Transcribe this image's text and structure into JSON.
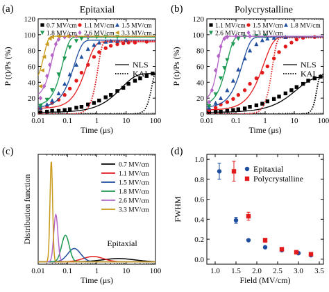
{
  "chart_data": [
    {
      "panel_label": "(a)",
      "type": "scatter",
      "title": "Epitaxial",
      "xlabel": "Time (μs)",
      "ylabel": "P (t)/Ps (%)",
      "xscale": "log",
      "xlim": [
        0.01,
        100
      ],
      "ylim": [
        0,
        120
      ],
      "xticks": [
        0.01,
        0.1,
        1,
        10,
        100
      ],
      "xticklabels": [
        "0.01",
        "0.1",
        "1",
        "10",
        "100"
      ],
      "yticks": [
        0,
        20,
        40,
        60,
        80,
        100,
        120
      ],
      "yticklabels": [
        "0",
        "20",
        "40",
        "60",
        "80",
        "100",
        "120"
      ],
      "legend_position": "top-left",
      "series": [
        {
          "name": "0.7 MV/cm",
          "color": "#000000",
          "marker": "square",
          "t0": 7,
          "n": 0.9,
          "x": [
            0.012,
            0.02,
            0.03,
            0.05,
            0.08,
            0.12,
            0.2,
            0.3,
            0.5,
            0.8,
            1.2,
            2,
            3,
            5,
            8,
            12,
            20,
            30,
            50,
            80
          ],
          "y": [
            2,
            3,
            4,
            4,
            5,
            6,
            8,
            9,
            12,
            14,
            17,
            21,
            24,
            29,
            33,
            38,
            42,
            45,
            48,
            51
          ]
        },
        {
          "name": "1.1 MV/cm",
          "color": "#e31a1c",
          "marker": "circle",
          "t0": 0.45,
          "n": 1.5,
          "x": [
            0.012,
            0.02,
            0.03,
            0.05,
            0.08,
            0.12,
            0.2,
            0.3,
            0.5,
            0.8,
            1.2,
            2,
            3,
            5,
            8,
            12,
            20,
            50
          ],
          "y": [
            7,
            10,
            14,
            18,
            24,
            32,
            42,
            52,
            62,
            72,
            78,
            83,
            86,
            88,
            89,
            90,
            90,
            91
          ]
        },
        {
          "name": "1.5 MV/cm",
          "color": "#1f4e9e",
          "marker": "triangle",
          "t0": 0.17,
          "n": 1.6,
          "x": [
            0.012,
            0.02,
            0.03,
            0.05,
            0.08,
            0.12,
            0.2,
            0.3,
            0.5,
            0.8,
            1.2,
            2,
            3,
            5,
            10
          ],
          "y": [
            8,
            12,
            17,
            26,
            38,
            50,
            62,
            72,
            82,
            87,
            90,
            91,
            92,
            92,
            93
          ]
        },
        {
          "name": "1.8 MV/cm",
          "color": "#1a9850",
          "marker": "triangle-down",
          "t0": 0.07,
          "n": 2.0,
          "x": [
            0.012,
            0.02,
            0.03,
            0.05,
            0.08,
            0.12,
            0.2,
            0.3,
            0.5,
            1,
            2,
            5
          ],
          "y": [
            10,
            18,
            30,
            50,
            70,
            84,
            92,
            95,
            96,
            97,
            97,
            97
          ]
        },
        {
          "name": "2.6 MV/cm",
          "color": "#b565c8",
          "marker": "diamond",
          "t0": 0.03,
          "n": 2.5,
          "x": [
            0.012,
            0.016,
            0.02,
            0.025,
            0.03,
            0.04,
            0.05,
            0.08,
            0.12,
            0.2,
            0.5
          ],
          "y": [
            20,
            35,
            48,
            62,
            74,
            88,
            94,
            97,
            98,
            98,
            98
          ]
        },
        {
          "name": "3.3 MV/cm",
          "color": "#c99a1a",
          "marker": "triangle-left",
          "t0": 0.016,
          "n": 3.0,
          "x": [
            0.012,
            0.014,
            0.016,
            0.02,
            0.025,
            0.03,
            0.05,
            0.1
          ],
          "y": [
            35,
            55,
            72,
            88,
            95,
            97,
            98,
            98
          ]
        }
      ],
      "model_legend": [
        "NLS",
        "KAI"
      ],
      "kai_curves": [
        {
          "color": "#000000",
          "t0": 75,
          "n": 4,
          "max": 55
        },
        {
          "color": "#e31a1c",
          "t0": 1.1,
          "n": 3,
          "max": 92
        }
      ]
    },
    {
      "panel_label": "(b)",
      "type": "scatter",
      "title": "Polycrystalline",
      "xlabel": "Time (μs)",
      "ylabel": "P (t)/Ps (%)",
      "xscale": "log",
      "xlim": [
        0.01,
        100
      ],
      "ylim": [
        0,
        120
      ],
      "xticks": [
        0.01,
        0.1,
        1,
        10,
        100
      ],
      "xticklabels": [
        "0.01",
        "0.1",
        "1",
        "10",
        "100"
      ],
      "yticks": [
        0,
        20,
        40,
        60,
        80,
        100,
        120
      ],
      "yticklabels": [
        "0",
        "20",
        "40",
        "60",
        "80",
        "100",
        "120"
      ],
      "legend_position": "top-left",
      "series": [
        {
          "name": "1.1 MV/cm",
          "color": "#000000",
          "marker": "square",
          "t0": 12,
          "n": 0.8,
          "x": [
            0.012,
            0.02,
            0.03,
            0.05,
            0.08,
            0.12,
            0.2,
            0.3,
            0.5,
            0.8,
            1.2,
            2,
            3,
            5,
            8,
            12,
            20,
            30,
            50,
            80
          ],
          "y": [
            2,
            3,
            3,
            4,
            5,
            6,
            7,
            9,
            11,
            13,
            16,
            19,
            22,
            26,
            30,
            34,
            38,
            42,
            45,
            47
          ]
        },
        {
          "name": "1.5 MV/cm",
          "color": "#e31a1c",
          "marker": "circle",
          "t0": 0.9,
          "n": 1.3,
          "x": [
            0.012,
            0.02,
            0.03,
            0.05,
            0.08,
            0.12,
            0.2,
            0.3,
            0.5,
            0.8,
            1.2,
            2,
            3,
            5,
            8,
            12,
            20,
            50
          ],
          "y": [
            5,
            8,
            12,
            15,
            19,
            24,
            30,
            38,
            45,
            52,
            60,
            70,
            78,
            85,
            90,
            94,
            96,
            97
          ]
        },
        {
          "name": "1.8 MV/cm",
          "color": "#1f4e9e",
          "marker": "triangle",
          "t0": 0.17,
          "n": 1.6,
          "x": [
            0.012,
            0.02,
            0.03,
            0.05,
            0.08,
            0.12,
            0.2,
            0.3,
            0.5,
            0.8,
            1.2,
            2,
            5
          ],
          "y": [
            8,
            14,
            20,
            30,
            42,
            56,
            70,
            80,
            88,
            93,
            95,
            96,
            97
          ]
        },
        {
          "name": "2.6 MV/cm",
          "color": "#1a9850",
          "marker": "triangle-down",
          "t0": 0.05,
          "n": 2.0,
          "x": [
            0.012,
            0.02,
            0.03,
            0.04,
            0.05,
            0.08,
            0.12,
            0.2,
            0.5,
            1
          ],
          "y": [
            10,
            25,
            45,
            58,
            68,
            88,
            95,
            97,
            98,
            98
          ]
        },
        {
          "name": "3.3 MV/cm",
          "color": "#b565c8",
          "marker": "diamond",
          "t0": 0.025,
          "n": 3.0,
          "x": [
            0.012,
            0.015,
            0.02,
            0.025,
            0.03,
            0.04,
            0.05,
            0.1,
            0.3
          ],
          "y": [
            15,
            30,
            55,
            73,
            85,
            95,
            97,
            98,
            98
          ]
        }
      ],
      "model_legend": [
        "NLS",
        "KAI"
      ],
      "kai_curves": [
        {
          "color": "#000000",
          "t0": 60,
          "n": 5,
          "max": 50
        },
        {
          "color": "#e31a1c",
          "t0": 1.8,
          "n": 3,
          "max": 96
        }
      ]
    },
    {
      "panel_label": "(c)",
      "type": "line",
      "title": "",
      "xlabel": "Time (μs)",
      "ylabel": "Distribution function",
      "xscale": "log",
      "xlim": [
        0.01,
        100
      ],
      "xticks": [
        0.01,
        0.1,
        1,
        10,
        100
      ],
      "xticklabels": [
        "0.01",
        "0.1",
        "1",
        "10",
        "100"
      ],
      "annotation": "Epitaxial",
      "legend_position": "top-right",
      "series": [
        {
          "name": "0.7 MV/cm",
          "color": "#000000",
          "center": 5.5,
          "width": 0.55,
          "height": 0.11
        },
        {
          "name": "1.1 MV/cm",
          "color": "#e31a1c",
          "center": 0.75,
          "width": 0.35,
          "height": 0.18
        },
        {
          "name": "1.5 MV/cm",
          "color": "#1f4e9e",
          "center": 0.17,
          "width": 0.22,
          "height": 0.45
        },
        {
          "name": "1.8 MV/cm",
          "color": "#1a9850",
          "center": 0.085,
          "width": 0.13,
          "height": 0.9
        },
        {
          "name": "2.6 MV/cm",
          "color": "#b565c8",
          "center": 0.04,
          "width": 0.07,
          "height": 1.6
        },
        {
          "name": "3.3 MV/cm",
          "color": "#c99a1a",
          "center": 0.028,
          "width": 0.045,
          "height": 3.4
        }
      ]
    },
    {
      "panel_label": "(d)",
      "type": "scatter",
      "title": "",
      "xlabel": "Field (MV/cm)",
      "ylabel": "FWHM",
      "xlim": [
        0.8,
        3.6
      ],
      "ylim": [
        -0.05,
        1.05
      ],
      "xticks": [
        1.0,
        1.5,
        2.0,
        2.5,
        3.0,
        3.5
      ],
      "xticklabels": [
        "1.0",
        "1.5",
        "2.0",
        "2.5",
        "3.0",
        "3.5"
      ],
      "yticks": [
        0.0,
        0.2,
        0.4,
        0.6,
        0.8,
        1.0
      ],
      "yticklabels": [
        "0.0",
        "0.2",
        "0.4",
        "0.6",
        "0.8",
        "1.0"
      ],
      "legend_position": "top-right",
      "series": [
        {
          "name": "Epitaxial",
          "color": "#1f4e9e",
          "marker": "circle",
          "x": [
            1.1,
            1.5,
            1.8,
            2.2,
            2.6,
            3.0,
            3.3
          ],
          "y": [
            0.88,
            0.39,
            0.19,
            0.12,
            0.09,
            0.06,
            0.04
          ],
          "err": [
            0.08,
            0.03,
            0.01,
            0.01,
            0.01,
            0.01,
            0.01
          ]
        },
        {
          "name": "Polycrystalline",
          "color": "#e31a1c",
          "marker": "square",
          "x": [
            1.45,
            1.8,
            2.2,
            2.6,
            2.95,
            3.3
          ],
          "y": [
            0.88,
            0.43,
            0.19,
            0.1,
            0.07,
            0.05
          ],
          "err": [
            0.1,
            0.04,
            0.02,
            0.01,
            0.01,
            0.01
          ]
        }
      ]
    }
  ]
}
